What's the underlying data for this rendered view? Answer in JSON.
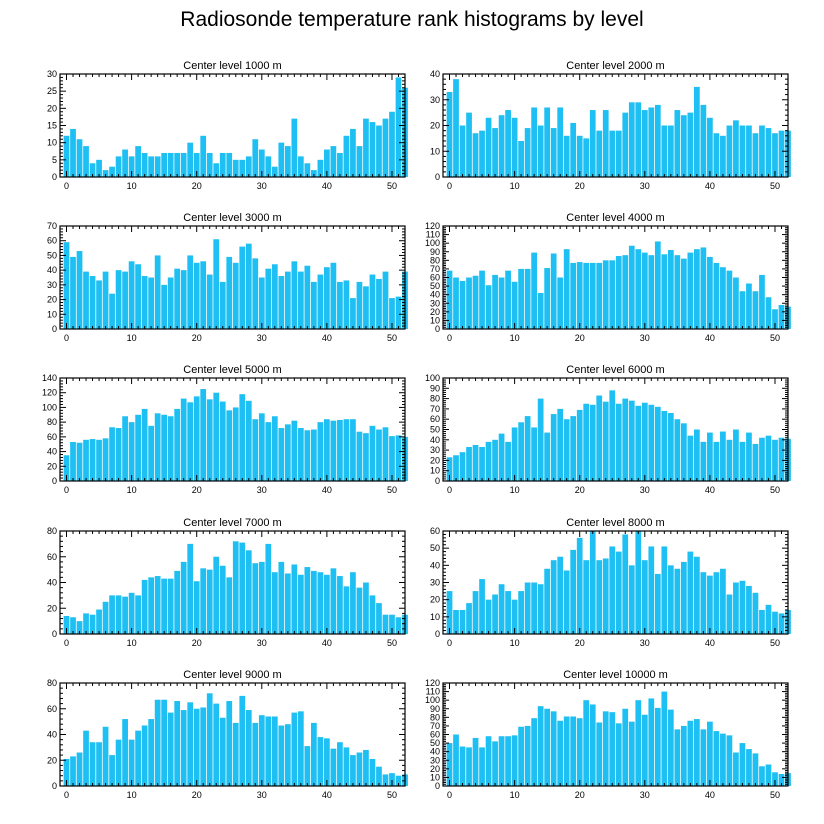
{
  "title": "Radiosonde temperature rank histograms by level",
  "bar_color": "#1ebff2",
  "chart_data": [
    {
      "type": "bar",
      "title": "Center level 1000 m",
      "xlim": [
        -1,
        52
      ],
      "ylim": [
        0,
        30
      ],
      "xticks": [
        0,
        10,
        20,
        30,
        40,
        50
      ],
      "yticks": [
        0,
        5,
        10,
        15,
        20,
        25,
        30
      ],
      "values": [
        12,
        14,
        11,
        9,
        4,
        5,
        2,
        3,
        6,
        8,
        6,
        9,
        7,
        6,
        6,
        7,
        7,
        7,
        7,
        10,
        7,
        12,
        7,
        4,
        7,
        7,
        5,
        5,
        6,
        11,
        8,
        6,
        3,
        10,
        9,
        17,
        6,
        4,
        2,
        5,
        8,
        9,
        7,
        12,
        14,
        9,
        17,
        16,
        15,
        17,
        19,
        29,
        26
      ]
    },
    {
      "type": "bar",
      "title": "Center level 2000 m",
      "xlim": [
        -1,
        52
      ],
      "ylim": [
        0,
        40
      ],
      "xticks": [
        0,
        10,
        20,
        30,
        40,
        50
      ],
      "yticks": [
        0,
        10,
        20,
        30,
        40
      ],
      "values": [
        33,
        38,
        20,
        25,
        17,
        18,
        23,
        19,
        24,
        26,
        23,
        14,
        19,
        27,
        20,
        27,
        19,
        27,
        16,
        21,
        16,
        15,
        26,
        18,
        26,
        18,
        18,
        25,
        29,
        29,
        26,
        27,
        28,
        20,
        20,
        26,
        24,
        25,
        35,
        28,
        23,
        17,
        16,
        20,
        22,
        20,
        20,
        17,
        20,
        19,
        17,
        18,
        18
      ]
    },
    {
      "type": "bar",
      "title": "Center level 3000 m",
      "xlim": [
        -1,
        52
      ],
      "ylim": [
        0,
        70
      ],
      "xticks": [
        0,
        10,
        20,
        30,
        40,
        50
      ],
      "yticks": [
        0,
        10,
        20,
        30,
        40,
        50,
        60,
        70
      ],
      "values": [
        59,
        49,
        53,
        39,
        36,
        33,
        39,
        24,
        40,
        39,
        46,
        44,
        36,
        35,
        50,
        30,
        35,
        41,
        40,
        50,
        45,
        46,
        37,
        61,
        32,
        49,
        45,
        56,
        58,
        48,
        35,
        41,
        44,
        36,
        39,
        46,
        39,
        43,
        32,
        37,
        42,
        45,
        32,
        33,
        21,
        32,
        29,
        37,
        34,
        39,
        21,
        22,
        39
      ]
    },
    {
      "type": "bar",
      "title": "Center level 4000 m",
      "xlim": [
        -1,
        52
      ],
      "ylim": [
        0,
        120
      ],
      "xticks": [
        0,
        10,
        20,
        30,
        40,
        50
      ],
      "yticks": [
        0,
        10,
        20,
        30,
        40,
        50,
        60,
        70,
        80,
        90,
        100,
        110,
        120
      ],
      "values": [
        68,
        60,
        56,
        60,
        62,
        68,
        51,
        63,
        60,
        68,
        55,
        70,
        70,
        89,
        42,
        71,
        88,
        60,
        93,
        77,
        78,
        77,
        77,
        77,
        80,
        80,
        85,
        86,
        97,
        93,
        89,
        86,
        102,
        87,
        92,
        86,
        82,
        89,
        93,
        95,
        84,
        77,
        72,
        68,
        60,
        44,
        53,
        44,
        63,
        37,
        23,
        28,
        26
      ]
    },
    {
      "type": "bar",
      "title": "Center level 5000 m",
      "xlim": [
        -1,
        52
      ],
      "ylim": [
        0,
        140
      ],
      "xticks": [
        0,
        10,
        20,
        30,
        40,
        50
      ],
      "yticks": [
        0,
        20,
        40,
        60,
        80,
        100,
        120,
        140
      ],
      "values": [
        35,
        53,
        52,
        56,
        57,
        56,
        58,
        73,
        72,
        88,
        80,
        90,
        98,
        75,
        92,
        90,
        88,
        98,
        112,
        107,
        115,
        125,
        111,
        120,
        108,
        96,
        100,
        118,
        109,
        84,
        92,
        80,
        88,
        72,
        77,
        82,
        72,
        69,
        70,
        80,
        84,
        82,
        83,
        84,
        84,
        67,
        65,
        75,
        70,
        73,
        61,
        62,
        60
      ]
    },
    {
      "type": "bar",
      "title": "Center level 6000 m",
      "xlim": [
        -1,
        52
      ],
      "ylim": [
        0,
        100
      ],
      "xticks": [
        0,
        10,
        20,
        30,
        40,
        50
      ],
      "yticks": [
        0,
        10,
        20,
        30,
        40,
        50,
        60,
        70,
        80,
        90,
        100
      ],
      "values": [
        23,
        25,
        28,
        33,
        35,
        33,
        38,
        40,
        46,
        38,
        52,
        57,
        63,
        52,
        80,
        47,
        65,
        70,
        60,
        63,
        69,
        75,
        74,
        83,
        77,
        88,
        75,
        80,
        78,
        73,
        76,
        74,
        72,
        68,
        66,
        60,
        56,
        44,
        50,
        38,
        47,
        38,
        48,
        40,
        50,
        38,
        47,
        36,
        42,
        44,
        40,
        42,
        41
      ]
    },
    {
      "type": "bar",
      "title": "Center level 7000 m",
      "xlim": [
        -1,
        52
      ],
      "ylim": [
        0,
        80
      ],
      "xticks": [
        0,
        10,
        20,
        30,
        40,
        50
      ],
      "yticks": [
        0,
        20,
        40,
        60,
        80
      ],
      "values": [
        14,
        13,
        10,
        16,
        15,
        19,
        25,
        30,
        30,
        29,
        32,
        30,
        42,
        44,
        45,
        43,
        43,
        49,
        56,
        70,
        41,
        51,
        50,
        60,
        53,
        44,
        72,
        71,
        65,
        55,
        56,
        70,
        48,
        56,
        47,
        54,
        46,
        52,
        49,
        48,
        46,
        51,
        45,
        37,
        48,
        36,
        40,
        30,
        24,
        15,
        15,
        13,
        15
      ]
    },
    {
      "type": "bar",
      "title": "Center level 8000 m",
      "xlim": [
        -1,
        52
      ],
      "ylim": [
        0,
        60
      ],
      "xticks": [
        0,
        10,
        20,
        30,
        40,
        50
      ],
      "yticks": [
        0,
        10,
        20,
        30,
        40,
        50,
        60
      ],
      "values": [
        25,
        14,
        14,
        18,
        25,
        32,
        20,
        23,
        29,
        25,
        20,
        25,
        30,
        30,
        29,
        38,
        43,
        45,
        37,
        49,
        56,
        43,
        60,
        43,
        44,
        51,
        48,
        58,
        40,
        60,
        43,
        51,
        35,
        51,
        40,
        38,
        42,
        48,
        45,
        36,
        34,
        36,
        38,
        23,
        30,
        31,
        28,
        24,
        14,
        17,
        13,
        12,
        14
      ]
    },
    {
      "type": "bar",
      "title": "Center level 9000 m",
      "xlim": [
        -1,
        52
      ],
      "ylim": [
        0,
        80
      ],
      "xticks": [
        0,
        10,
        20,
        30,
        40,
        50
      ],
      "yticks": [
        0,
        20,
        40,
        60,
        80
      ],
      "values": [
        21,
        23,
        26,
        43,
        34,
        34,
        46,
        24,
        36,
        52,
        36,
        43,
        47,
        52,
        67,
        67,
        57,
        66,
        59,
        65,
        60,
        61,
        72,
        64,
        53,
        66,
        49,
        70,
        59,
        49,
        55,
        54,
        54,
        47,
        48,
        57,
        58,
        31,
        49,
        38,
        37,
        29,
        34,
        30,
        24,
        26,
        28,
        21,
        15,
        9,
        10,
        8,
        9
      ]
    },
    {
      "type": "bar",
      "title": "Center level 10000 m",
      "xlim": [
        -1,
        52
      ],
      "ylim": [
        0,
        120
      ],
      "xticks": [
        0,
        10,
        20,
        30,
        40,
        50
      ],
      "yticks": [
        0,
        10,
        20,
        30,
        40,
        50,
        60,
        70,
        80,
        90,
        100,
        110,
        120
      ],
      "values": [
        50,
        60,
        46,
        45,
        56,
        45,
        58,
        52,
        58,
        58,
        59,
        69,
        70,
        79,
        93,
        90,
        87,
        76,
        81,
        81,
        79,
        100,
        95,
        74,
        87,
        86,
        73,
        90,
        75,
        100,
        83,
        102,
        91,
        110,
        89,
        66,
        70,
        76,
        78,
        66,
        75,
        64,
        61,
        59,
        39,
        50,
        43,
        38,
        23,
        25,
        16,
        14,
        15
      ]
    }
  ]
}
